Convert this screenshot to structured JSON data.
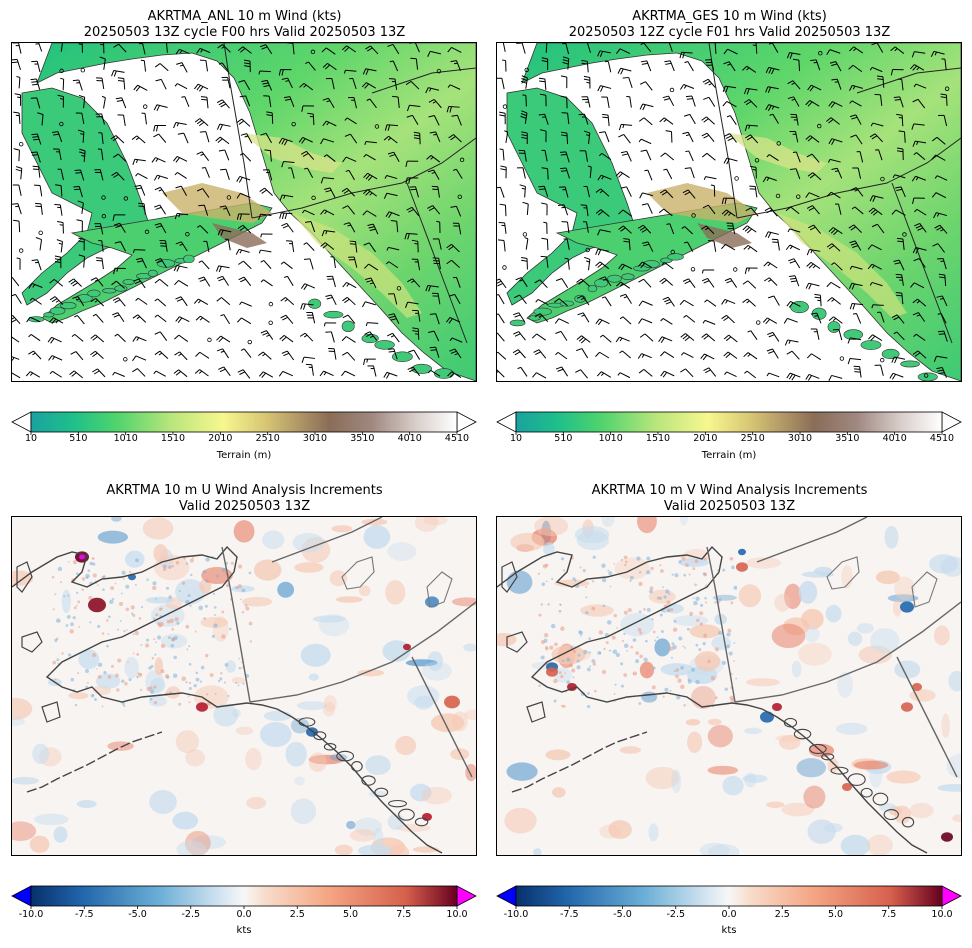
{
  "panels": [
    {
      "title_line1": "AKRTMA_ANL 10 m Wind (kts)",
      "title_line2": "20250503 13Z cycle F00 hrs Valid 20250503 13Z",
      "kind": "terrain"
    },
    {
      "title_line1": "AKRTMA_GES 10 m Wind (kts)",
      "title_line2": "20250503 12Z cycle F01 hrs Valid 20250503 13Z",
      "kind": "terrain"
    },
    {
      "title_line1": "AKRTMA 10 m U Wind Analysis Increments",
      "title_line2": "Valid 20250503 13Z",
      "kind": "increment"
    },
    {
      "title_line1": "AKRTMA 10 m V Wind Analysis Increments",
      "title_line2": "Valid 20250503 13Z",
      "kind": "increment"
    }
  ],
  "terrain_colorbar": {
    "label": "Terrain (m)",
    "ticks": [
      "10",
      "510",
      "1010",
      "1510",
      "2010",
      "2510",
      "3010",
      "3510",
      "4010",
      "4510"
    ],
    "range": [
      10,
      4510
    ]
  },
  "increment_colorbar": {
    "label": "kts",
    "ticks": [
      "-10.0",
      "-7.5",
      "-5.0",
      "-2.5",
      "0.0",
      "2.5",
      "5.0",
      "7.5",
      "10.0"
    ],
    "range": [
      -10,
      10
    ],
    "under_color": "#0000ff",
    "over_color": "#ff00ff"
  },
  "chart_data": [
    {
      "type": "heatmap",
      "title": "AKRTMA_ANL 10 m Wind (kts) 20250503 13Z cycle F00 hrs Valid 20250503 13Z",
      "field": "Terrain (m) with 10 m wind barbs",
      "colorbar_range": [
        10,
        4510
      ],
      "colormap": "terrain"
    },
    {
      "type": "heatmap",
      "title": "AKRTMA_GES 10 m Wind (kts) 20250503 12Z cycle F01 hrs Valid 20250503 13Z",
      "field": "Terrain (m) with 10 m wind barbs",
      "colorbar_range": [
        10,
        4510
      ],
      "colormap": "terrain"
    },
    {
      "type": "heatmap",
      "title": "AKRTMA 10 m U Wind Analysis Increments Valid 20250503 13Z",
      "field": "U wind increment (kts)",
      "colorbar_range": [
        -10,
        10
      ],
      "colormap": "RdBu_r"
    },
    {
      "type": "heatmap",
      "title": "AKRTMA 10 m V Wind Analysis Increments Valid 20250503 13Z",
      "field": "V wind increment (kts)",
      "colorbar_range": [
        -10,
        10
      ],
      "colormap": "RdBu_r"
    }
  ]
}
